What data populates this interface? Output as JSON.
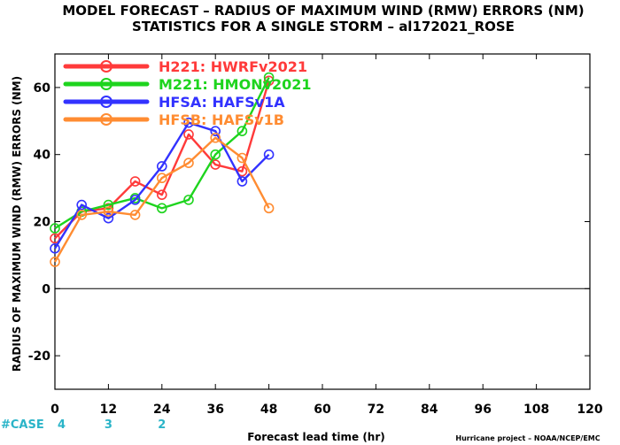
{
  "chart_data": {
    "type": "line",
    "title_lines": [
      "MODEL FORECAST – RADIUS OF MAXIMUM WIND (RMW) ERRORS (NM)",
      "STATISTICS FOR A SINGLE STORM – al172021_ROSE"
    ],
    "xlabel": "Forecast lead time (hr)",
    "ylabel": "RADIUS OF MAXIMUM WIND (RMW) ERRORS (NM)",
    "xlim": [
      0,
      120
    ],
    "ylim": [
      -30,
      70
    ],
    "x_ticks": [
      0,
      12,
      24,
      36,
      48,
      60,
      72,
      84,
      96,
      108,
      120
    ],
    "y_ticks": [
      -20,
      0,
      20,
      40,
      60
    ],
    "zero_line": true,
    "legend_position": "top-left",
    "series": [
      {
        "name": "H221:  HWRFv2021",
        "color": "#ff3a3a",
        "x": [
          0,
          6,
          12,
          18,
          24,
          30,
          36,
          42,
          48
        ],
        "y": [
          15,
          23,
          24,
          32,
          28,
          46,
          37,
          35,
          62
        ]
      },
      {
        "name": "M221:  HMONv2021",
        "color": "#1ed41e",
        "x": [
          0,
          6,
          12,
          18,
          24,
          30,
          36,
          42,
          48
        ],
        "y": [
          18,
          23,
          25,
          27,
          24,
          26.5,
          40,
          47,
          63
        ]
      },
      {
        "name": "HFSA:  HAFSv1A",
        "color": "#3232ff",
        "x": [
          0,
          6,
          12,
          18,
          24,
          30,
          36,
          42,
          48
        ],
        "y": [
          12,
          25,
          21,
          26.5,
          36.5,
          49.5,
          47,
          32,
          40
        ]
      },
      {
        "name": "HFSB:  HAFSv1B",
        "color": "#ff8c32",
        "x": [
          0,
          6,
          12,
          18,
          24,
          30,
          36,
          42,
          48
        ],
        "y": [
          8,
          22,
          23,
          22,
          33,
          37.5,
          45,
          39,
          24
        ]
      }
    ],
    "case_label": "#CASE",
    "case_color": "#2ab4c8",
    "case_counts": [
      {
        "x": 0,
        "n": "4"
      },
      {
        "x": 12,
        "n": "3"
      },
      {
        "x": 24,
        "n": "2"
      }
    ],
    "credit": "Hurricane project – NOAA/NCEP/EMC"
  }
}
